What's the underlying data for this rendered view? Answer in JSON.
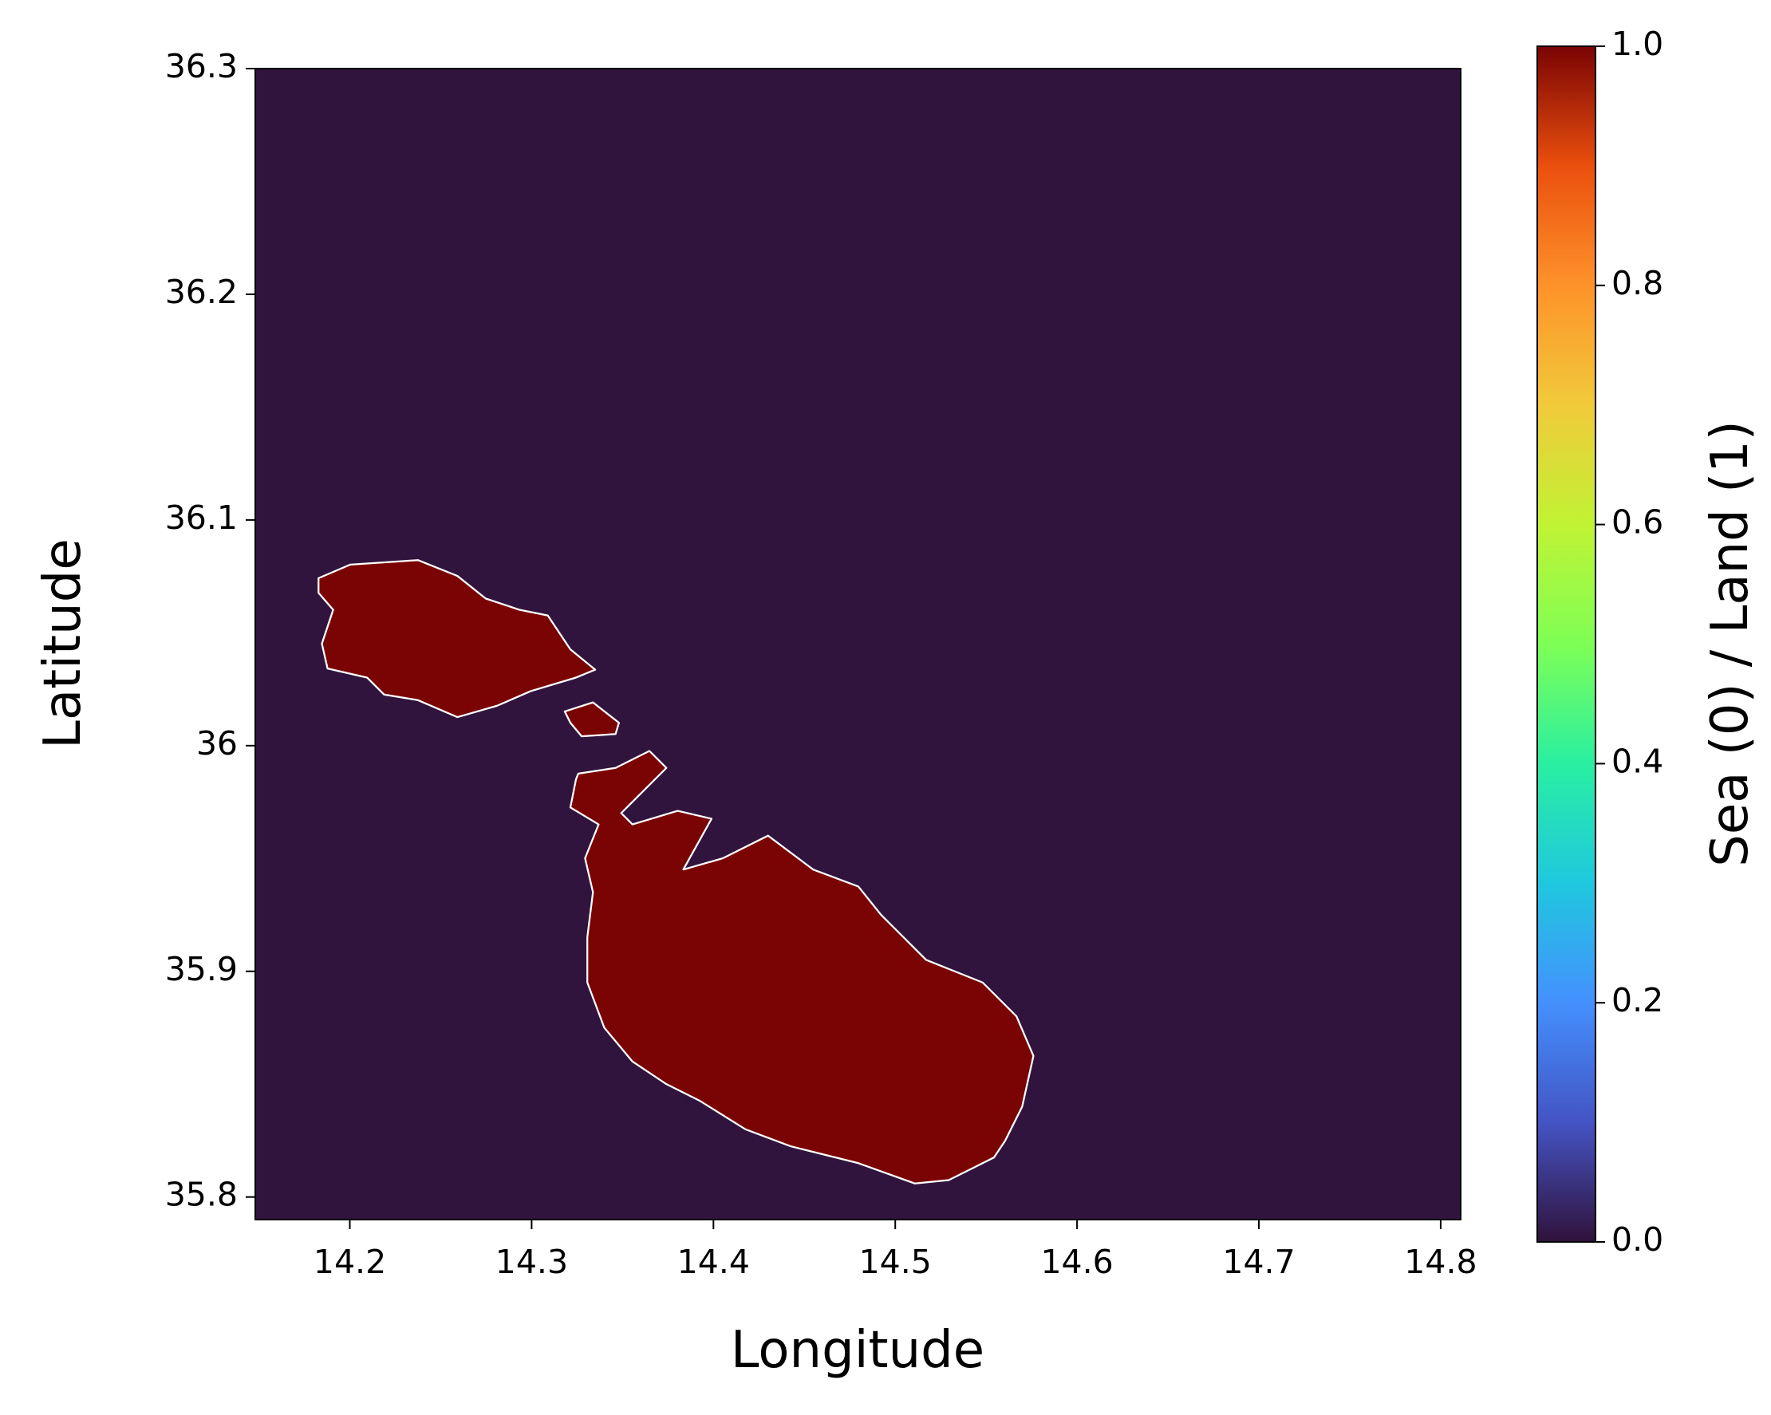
{
  "chart_data": {
    "type": "map",
    "xlabel": "Longitude",
    "ylabel": "Latitude",
    "xlim": [
      14.148,
      14.811
    ],
    "ylim": [
      35.79,
      36.3
    ],
    "xticks": [
      14.2,
      14.3,
      14.4,
      14.5,
      14.6,
      14.7,
      14.8
    ],
    "yticks": [
      35.8,
      35.9,
      36.0,
      36.1,
      36.2,
      36.3
    ],
    "colorbar": {
      "label": "Sea (0) / Land (1)",
      "lim": [
        0,
        1
      ],
      "ticks": [
        {
          "value": 0,
          "label": "0.0"
        },
        0.2,
        0.4,
        0.6,
        0.8,
        {
          "value": 1,
          "label": "1.0"
        }
      ]
    }
  }
}
